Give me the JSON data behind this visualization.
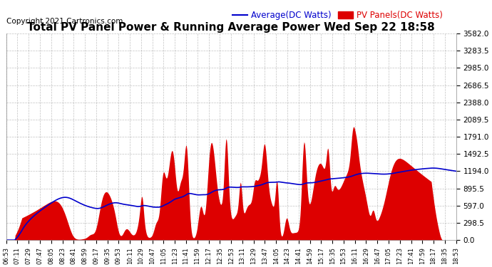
{
  "title": "Total PV Panel Power & Running Average Power Wed Sep 22 18:58",
  "copyright": "Copyright 2021 Cartronics.com",
  "legend_avg": "Average(DC Watts)",
  "legend_pv": "PV Panels(DC Watts)",
  "ymax": 3582.0,
  "ymin": 0.0,
  "yticks": [
    0.0,
    298.5,
    597.0,
    895.5,
    1194.0,
    1492.5,
    1791.0,
    2089.5,
    2388.0,
    2686.5,
    2985.0,
    3283.5,
    3582.0
  ],
  "xtick_labels": [
    "06:53",
    "07:11",
    "07:29",
    "07:47",
    "08:05",
    "08:23",
    "08:41",
    "08:59",
    "09:17",
    "09:35",
    "09:53",
    "10:11",
    "10:29",
    "10:47",
    "11:05",
    "11:23",
    "11:41",
    "11:59",
    "12:17",
    "12:35",
    "12:53",
    "13:11",
    "13:29",
    "13:47",
    "14:05",
    "14:23",
    "14:41",
    "14:59",
    "15:17",
    "15:35",
    "15:53",
    "16:11",
    "16:29",
    "16:47",
    "17:05",
    "17:23",
    "17:41",
    "17:59",
    "18:17",
    "18:35",
    "18:53"
  ],
  "pv_color": "#dd0000",
  "avg_color": "#0000cc",
  "bg_color": "#ffffff",
  "grid_color": "#999999",
  "title_color": "#000000",
  "copyright_color": "#000000",
  "legend_avg_color": "#0000cc",
  "legend_pv_color": "#dd0000",
  "title_fontsize": 11,
  "copyright_fontsize": 7.5,
  "legend_fontsize": 8.5,
  "fig_width": 6.9,
  "fig_height": 3.75,
  "dpi": 100
}
